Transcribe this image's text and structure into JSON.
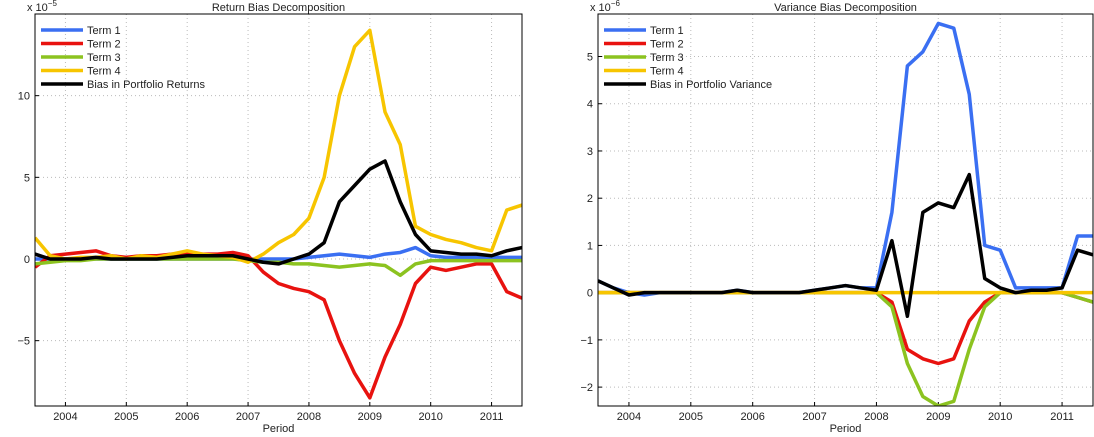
{
  "chart_data": [
    {
      "type": "line",
      "title": "Return Bias Decomposition",
      "x_label": "Period",
      "exponent": {
        "base": "x 10",
        "power": "−5"
      },
      "x": [
        2003.5,
        2003.75,
        2004,
        2004.25,
        2004.5,
        2004.75,
        2005,
        2005.25,
        2005.5,
        2005.75,
        2006,
        2006.25,
        2006.5,
        2006.75,
        2007,
        2007.25,
        2007.5,
        2007.75,
        2008,
        2008.25,
        2008.5,
        2008.75,
        2009,
        2009.25,
        2009.5,
        2009.75,
        2010,
        2010.25,
        2010.5,
        2010.75,
        2011,
        2011.25,
        2011.5
      ],
      "xlim": [
        2003.5,
        2011.5
      ],
      "xticks": [
        2004,
        2005,
        2006,
        2007,
        2008,
        2009,
        2010,
        2011
      ],
      "ylim": [
        -9,
        15
      ],
      "yticks": [
        {
          "value": -5,
          "label": "−5"
        },
        0,
        5,
        10
      ],
      "grid": true,
      "legend": "upper left",
      "series": [
        {
          "name": "Term 1",
          "color": "#3a6ff2",
          "values": [
            0,
            0,
            0,
            0,
            0,
            0,
            0,
            0,
            0,
            0,
            0,
            0,
            0,
            0,
            0,
            0,
            0,
            0,
            0.1,
            0.2,
            0.3,
            0.2,
            0.1,
            0.3,
            0.4,
            0.7,
            0.2,
            0.1,
            0.1,
            0.1,
            0.1,
            0.1,
            0.1
          ]
        },
        {
          "name": "Term 2",
          "color": "#e8120f",
          "values": [
            -0.5,
            0.2,
            0.3,
            0.4,
            0.5,
            0.2,
            0.1,
            0.2,
            0.2,
            0.3,
            0.3,
            0.3,
            0.3,
            0.4,
            0.2,
            -0.8,
            -1.5,
            -1.8,
            -2,
            -2.5,
            -5,
            -7,
            -8.5,
            -6,
            -4,
            -1.5,
            -0.5,
            -0.7,
            -0.5,
            -0.3,
            -0.3,
            -2,
            -2.4
          ]
        },
        {
          "name": "Term 3",
          "color": "#8cc320",
          "values": [
            -0.3,
            -0.2,
            -0.1,
            -0.1,
            0,
            0,
            0,
            0,
            0,
            0,
            0,
            0,
            0,
            0,
            -0.1,
            -0.2,
            -0.2,
            -0.3,
            -0.3,
            -0.4,
            -0.5,
            -0.4,
            -0.3,
            -0.4,
            -1,
            -0.3,
            -0.1,
            -0.1,
            -0.1,
            -0.1,
            -0.1,
            -0.1,
            -0.1
          ]
        },
        {
          "name": "Term 4",
          "color": "#f7c500",
          "values": [
            1.3,
            0.2,
            0,
            0.1,
            0.1,
            0.2,
            0,
            0.2,
            0.1,
            0.3,
            0.5,
            0.3,
            0.2,
            0.1,
            -0.2,
            0.3,
            1,
            1.5,
            2.5,
            5,
            10,
            13,
            14,
            9,
            7,
            2,
            1.5,
            1.2,
            1,
            0.7,
            0.5,
            3,
            3.3
          ]
        },
        {
          "name": "Bias in Portfolio Returns",
          "color": "#000000",
          "values": [
            0.3,
            0,
            0,
            0,
            0.1,
            0,
            0,
            0,
            0,
            0.1,
            0.2,
            0.2,
            0.2,
            0.2,
            0,
            -0.2,
            -0.3,
            0,
            0.3,
            1,
            3.5,
            4.5,
            5.5,
            6,
            3.5,
            1.5,
            0.5,
            0.4,
            0.3,
            0.3,
            0.2,
            0.5,
            0.7
          ]
        }
      ]
    },
    {
      "type": "line",
      "title": "Variance Bias Decomposition",
      "x_label": "Period",
      "exponent": {
        "base": "x 10",
        "power": "−6"
      },
      "x": [
        2003.5,
        2003.75,
        2004,
        2004.25,
        2004.5,
        2004.75,
        2005,
        2005.25,
        2005.5,
        2005.75,
        2006,
        2006.25,
        2006.5,
        2006.75,
        2007,
        2007.25,
        2007.5,
        2007.75,
        2008,
        2008.25,
        2008.5,
        2008.75,
        2009,
        2009.25,
        2009.5,
        2009.75,
        2010,
        2010.25,
        2010.5,
        2010.75,
        2011,
        2011.25,
        2011.5
      ],
      "xlim": [
        2003.5,
        2011.5
      ],
      "xticks": [
        2004,
        2005,
        2006,
        2007,
        2008,
        2009,
        2010,
        2011
      ],
      "ylim": [
        -2.4,
        5.9
      ],
      "yticks": [
        {
          "value": -2,
          "label": "−2"
        },
        {
          "value": -1,
          "label": "−1"
        },
        0,
        1,
        2,
        3,
        4,
        5
      ],
      "grid": true,
      "legend": "upper left",
      "series": [
        {
          "name": "Term 1",
          "color": "#3a6ff2",
          "values": [
            0.25,
            0.1,
            0,
            -0.05,
            0,
            0,
            0,
            0,
            0,
            0.05,
            0,
            0,
            0,
            0,
            0.05,
            0.1,
            0.15,
            0.1,
            0.1,
            1.7,
            4.8,
            5.1,
            5.7,
            5.6,
            4.2,
            1,
            0.9,
            0.1,
            0.1,
            0.1,
            0.1,
            1.2,
            1.2
          ]
        },
        {
          "name": "Term 2",
          "color": "#e8120f",
          "values": [
            0,
            0,
            0,
            0,
            0,
            0,
            0,
            0,
            0,
            0,
            0,
            0,
            0,
            0,
            0,
            0,
            0,
            0,
            0,
            -0.2,
            -1.2,
            -1.4,
            -1.5,
            -1.4,
            -0.6,
            -0.2,
            0,
            0,
            0,
            0,
            0,
            -0.1,
            -0.2
          ]
        },
        {
          "name": "Term 3",
          "color": "#8cc320",
          "values": [
            0,
            0,
            0,
            0,
            0,
            0,
            0,
            0,
            0,
            0,
            0,
            0,
            0,
            0,
            0,
            0,
            0,
            0,
            0,
            -0.3,
            -1.5,
            -2.2,
            -2.4,
            -2.3,
            -1.2,
            -0.3,
            0,
            0,
            0,
            0,
            0,
            -0.1,
            -0.2
          ]
        },
        {
          "name": "Term 4",
          "color": "#f7c500",
          "values": [
            0,
            0,
            0,
            0,
            0,
            0,
            0,
            0,
            0,
            0,
            0,
            0,
            0,
            0,
            0,
            0,
            0,
            0,
            0,
            0,
            0,
            0,
            0,
            0,
            0,
            0,
            0,
            0,
            0,
            0,
            0,
            0,
            0
          ]
        },
        {
          "name": "Bias in Portfolio Variance",
          "color": "#000000",
          "values": [
            0.25,
            0.1,
            -0.05,
            0,
            0,
            0,
            0,
            0,
            0,
            0.05,
            0,
            0,
            0,
            0,
            0.05,
            0.1,
            0.15,
            0.1,
            0.05,
            1.1,
            -0.5,
            1.7,
            1.9,
            1.8,
            2.5,
            0.3,
            0.1,
            0,
            0.05,
            0.05,
            0.1,
            0.9,
            0.8
          ]
        }
      ]
    }
  ]
}
